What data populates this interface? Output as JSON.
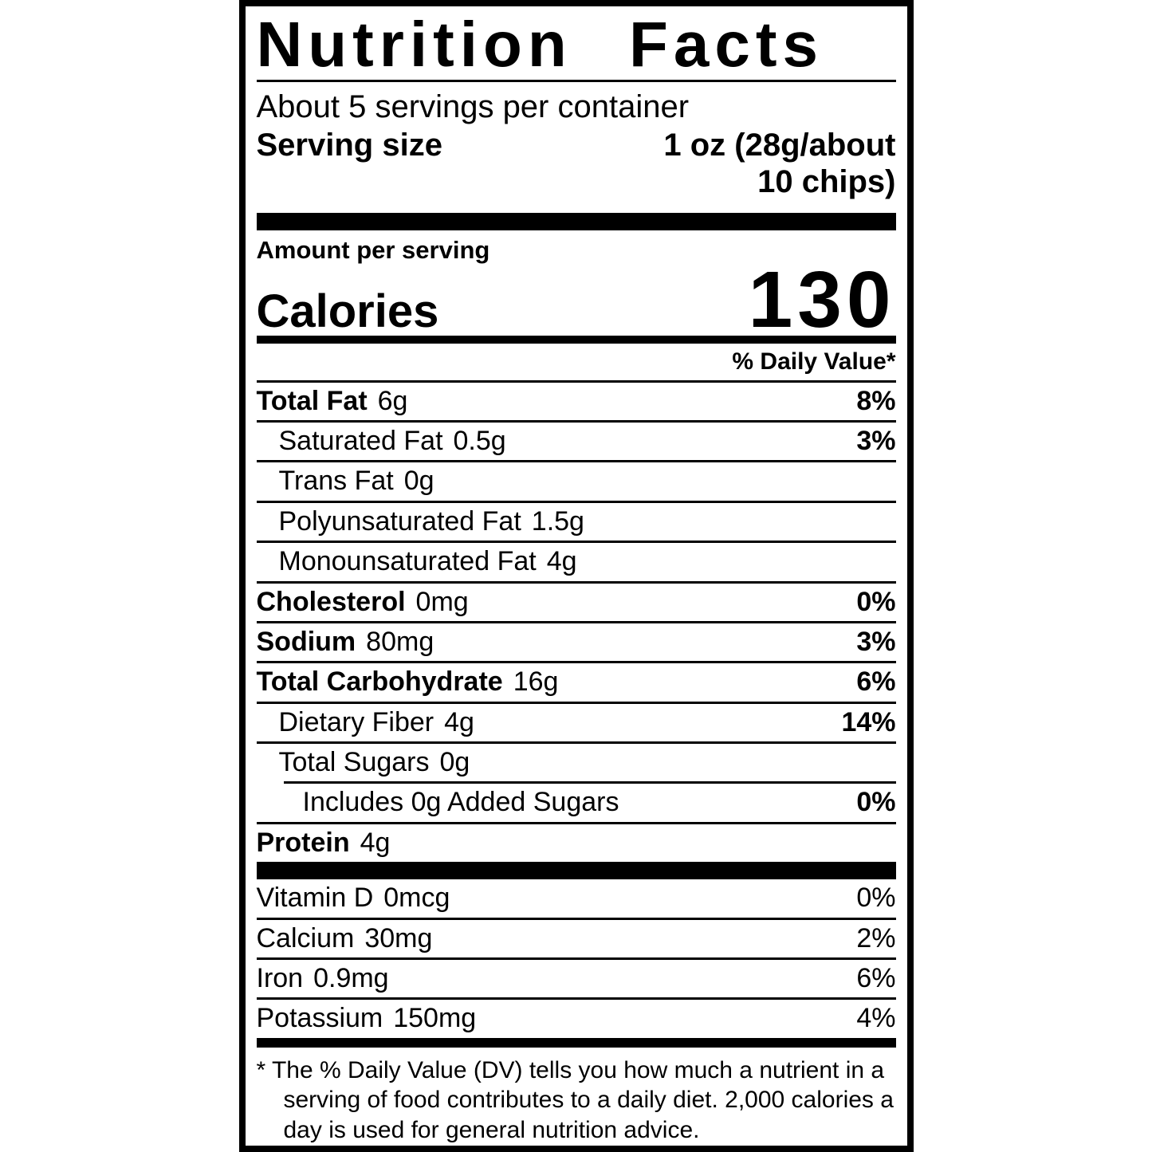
{
  "label": {
    "title": "Nutrition Facts",
    "servings_per_container": "About 5 servings per container",
    "serving_size_label": "Serving size",
    "serving_size_value": "1 oz (28g/about\n10 chips)",
    "amount_per_serving": "Amount per serving",
    "calories_label": "Calories",
    "calories_value": "130",
    "daily_value_header": "% Daily Value*",
    "nutrients": [
      {
        "name": "Total Fat",
        "amount": "6g",
        "dv": "8%"
      },
      {
        "name": "Saturated Fat",
        "amount": "0.5g",
        "dv": "3%"
      },
      {
        "name": "Trans Fat",
        "amount": "0g",
        "dv": ""
      },
      {
        "name": "Polyunsaturated Fat",
        "amount": "1.5g",
        "dv": ""
      },
      {
        "name": "Monounsaturated Fat",
        "amount": "4g",
        "dv": ""
      },
      {
        "name": "Cholesterol",
        "amount": "0mg",
        "dv": "0%"
      },
      {
        "name": "Sodium",
        "amount": "80mg",
        "dv": "3%"
      },
      {
        "name": "Total Carbohydrate",
        "amount": "16g",
        "dv": "6%"
      },
      {
        "name": "Dietary Fiber",
        "amount": "4g",
        "dv": "14%"
      },
      {
        "name": "Total Sugars",
        "amount": "0g",
        "dv": ""
      },
      {
        "name": "Includes 0g Added Sugars",
        "amount": "",
        "dv": "0%"
      },
      {
        "name": "Protein",
        "amount": "4g",
        "dv": ""
      }
    ],
    "vitamins": [
      {
        "name": "Vitamin D",
        "amount": "0mcg",
        "dv": "0%"
      },
      {
        "name": "Calcium",
        "amount": "30mg",
        "dv": "2%"
      },
      {
        "name": "Iron",
        "amount": "0.9mg",
        "dv": "6%"
      },
      {
        "name": "Potassium",
        "amount": "150mg",
        "dv": "4%"
      }
    ],
    "footnote": "* The % Daily Value (DV) tells you how much a nutrient in a serving of food contributes to a daily diet. 2,000 calories a day is used for general nutrition advice.",
    "colors": {
      "ink": "#000000",
      "paper": "#ffffff"
    }
  }
}
